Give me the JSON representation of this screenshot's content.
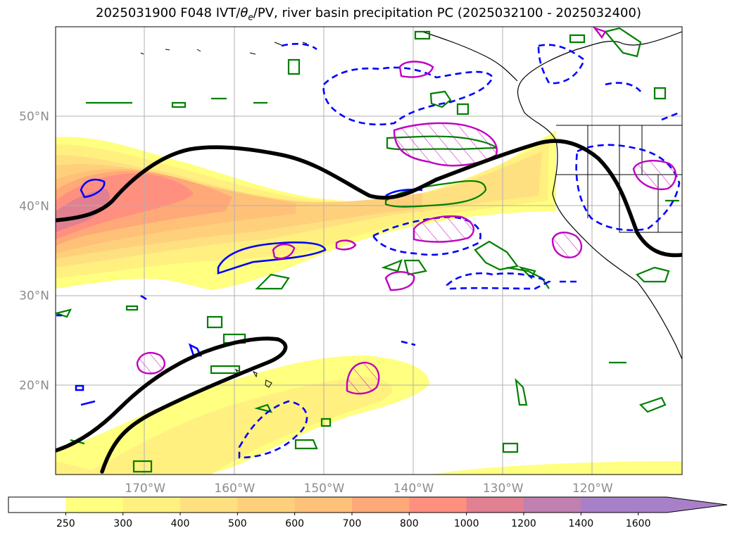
{
  "title": "2025031900 F048 IVT/θe/PV, river basin precipitation PC (2025032100 - 2025032400)",
  "map": {
    "projection": "PlateCarree",
    "lon_range": [
      -180,
      -110
    ],
    "lat_range": [
      10,
      60
    ],
    "gridlines": true,
    "lon_ticks": [
      "170°W",
      "160°W",
      "150°W",
      "140°W",
      "130°W",
      "120°W"
    ],
    "lat_ticks": [
      "50°N",
      "40°N",
      "30°N",
      "20°N"
    ]
  },
  "colorbar": {
    "levels": [
      "250",
      "300",
      "400",
      "500",
      "600",
      "700",
      "800",
      "1000",
      "1200",
      "1400",
      "1600"
    ],
    "colors": [
      "#ffffff",
      "#ffff80",
      "#fff080",
      "#ffe080",
      "#ffd07c",
      "#ffc078",
      "#ffa878",
      "#ff9080",
      "#e08090",
      "#c080b0",
      "#a880c8"
    ],
    "extend": "max"
  },
  "legend_colors": {
    "theta_e_contour": "#000000",
    "pv_positive": "#0000ff",
    "pv_negative": "#0000ff",
    "precip_pc": "#008000",
    "precip_pc_hatched": "#c000c0"
  }
}
